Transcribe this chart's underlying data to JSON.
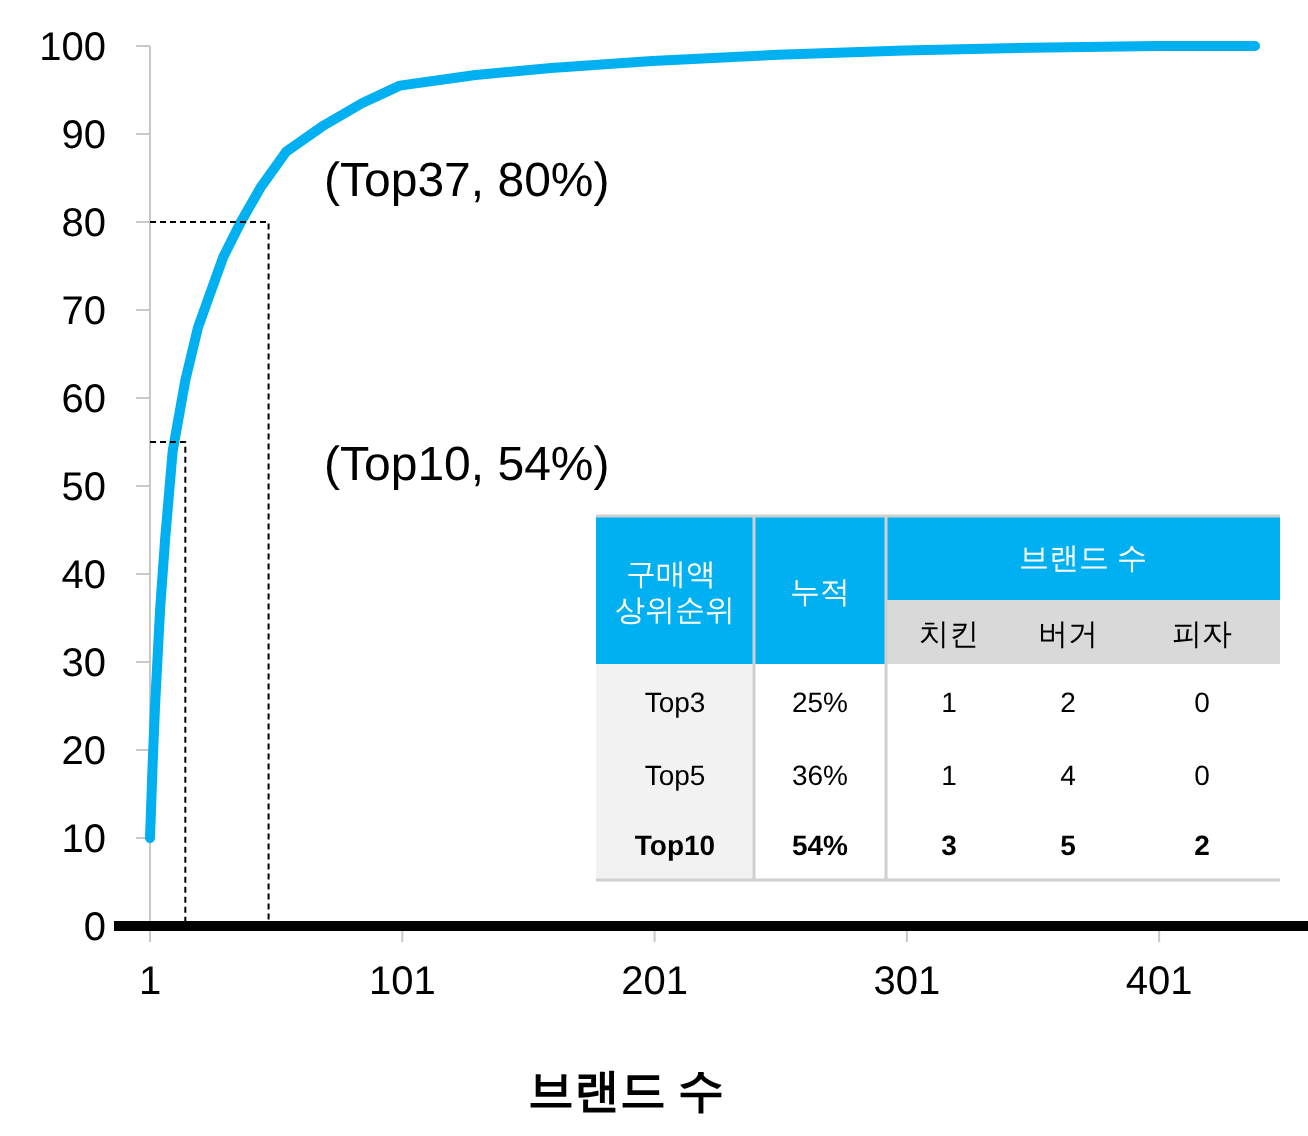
{
  "chart_data": [
    {
      "type": "line",
      "xlabel": "브랜드 수",
      "marker": "none",
      "grid": false,
      "series": [
        {
          "color": "#00b0f0",
          "line_style": "solid",
          "x": [
            1,
            2,
            3,
            5,
            7,
            10,
            15,
            20,
            25,
            30,
            37,
            45,
            55,
            70,
            85,
            100,
            130,
            160,
            200,
            250,
            300,
            350,
            400,
            439
          ],
          "values": [
            10,
            18,
            25,
            36,
            44,
            54,
            62,
            68,
            72,
            76,
            80,
            84,
            88,
            91,
            93.5,
            95.5,
            96.7,
            97.5,
            98.3,
            99,
            99.5,
            99.8,
            100,
            100
          ]
        },
        {
          "color": "#000000",
          "line_style": "dashed",
          "x": [
            1,
            48,
            48
          ],
          "values": [
            80,
            80,
            0
          ]
        },
        {
          "color": "#000000",
          "line_style": "dashed",
          "x": [
            1,
            15,
            15
          ],
          "values": [
            55,
            55,
            0
          ]
        }
      ],
      "xlim": [
        1,
        460
      ],
      "ylim": [
        0,
        100
      ],
      "xticks": [
        1,
        101,
        201,
        301,
        401
      ],
      "yticks": [
        0,
        10,
        20,
        30,
        40,
        50,
        60,
        70,
        80,
        90,
        100
      ],
      "annotations": [
        "(Top37, 80%)",
        "(Top10, 54%)"
      ]
    },
    {
      "type": "other",
      "annotations": [
        "구매액 상위순위",
        "누적",
        "브랜드 수",
        "치킨",
        "버거",
        "피자",
        "Top3",
        "25%",
        "1",
        "2",
        "0",
        "Top5",
        "36%",
        "1",
        "4",
        "0",
        "Top10",
        "54%",
        "3",
        "5",
        "2"
      ]
    }
  ]
}
